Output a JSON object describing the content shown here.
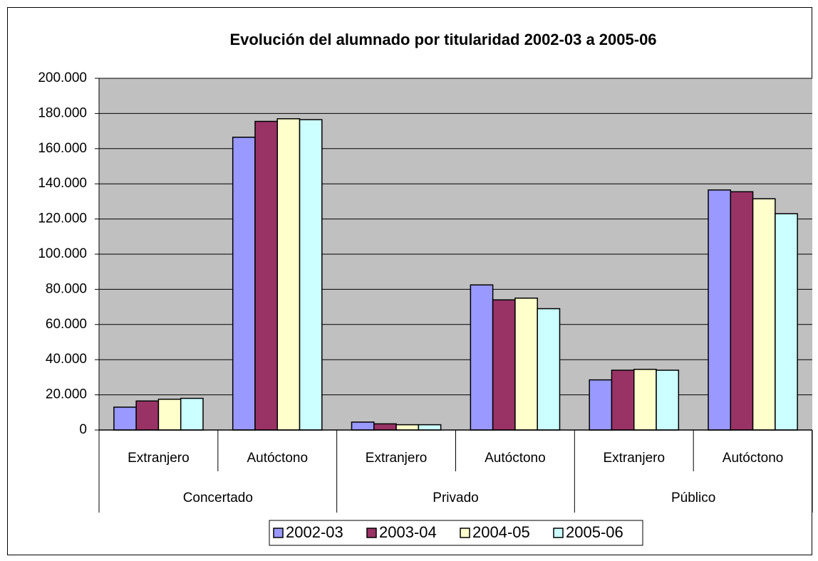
{
  "chart_data": {
    "type": "bar",
    "title": "Evolución del alumnado por titularidad 2002-03 a 2005-06",
    "categories": [
      "Extranjero",
      "Autóctono",
      "Extranjero",
      "Autóctono",
      "Extranjero",
      "Autóctono"
    ],
    "category_groups": [
      "Concertado",
      "Privado",
      "Público"
    ],
    "series": [
      {
        "name": "2002-03",
        "color": "#9999ff",
        "values": [
          13000,
          166500,
          4500,
          82500,
          28500,
          136500
        ]
      },
      {
        "name": "2003-04",
        "color": "#993366",
        "values": [
          16500,
          175500,
          3500,
          74000,
          34000,
          135500
        ]
      },
      {
        "name": "2004-05",
        "color": "#ffffcc",
        "values": [
          17500,
          177000,
          3000,
          75000,
          34500,
          131500
        ]
      },
      {
        "name": "2005-06",
        "color": "#ccffff",
        "values": [
          18000,
          176500,
          3000,
          69000,
          34000,
          123000
        ]
      }
    ],
    "ylim": [
      0,
      200000
    ],
    "yticks": [
      0,
      {
        "value": 20000,
        "label": "20.000"
      },
      {
        "value": 40000,
        "label": "40.000"
      },
      {
        "value": 60000,
        "label": "60.000"
      },
      {
        "value": 80000,
        "label": "80.000"
      },
      {
        "value": 100000,
        "label": "100.000"
      },
      {
        "value": 120000,
        "label": "120.000"
      },
      {
        "value": 140000,
        "label": "140.000"
      },
      {
        "value": 160000,
        "label": "160.000"
      },
      {
        "value": 180000,
        "label": "180.000"
      },
      {
        "value": 200000,
        "label": "200.000"
      }
    ],
    "grid": true,
    "legend": "bottom"
  }
}
